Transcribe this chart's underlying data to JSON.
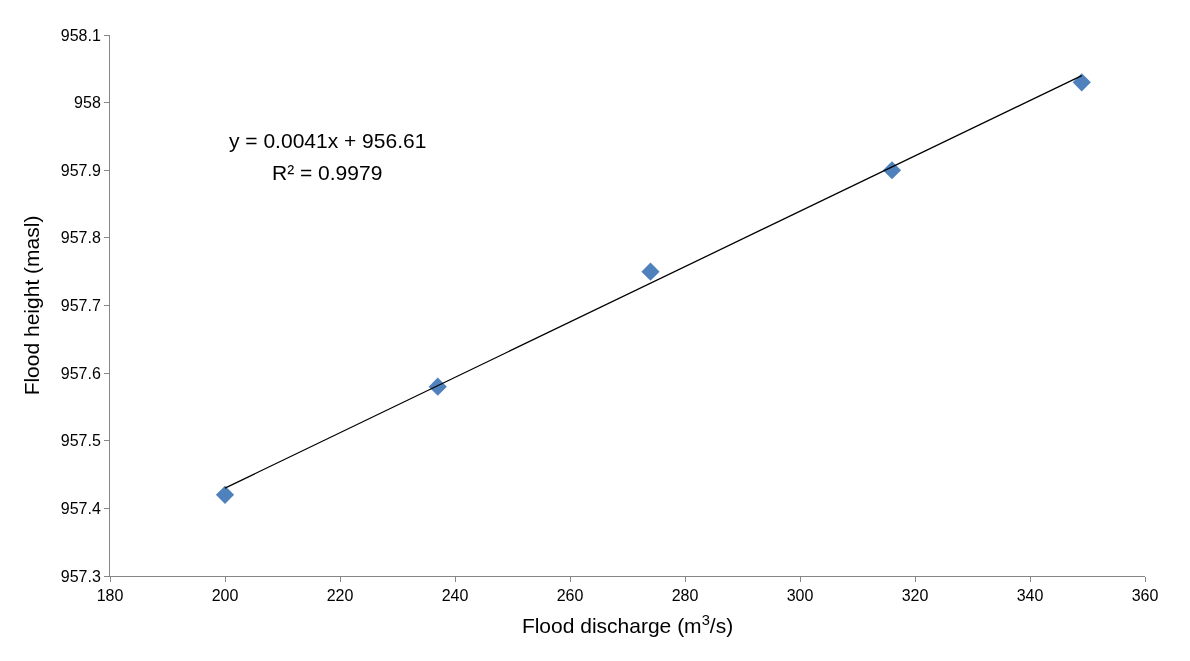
{
  "chart_data": {
    "type": "scatter",
    "xlabel": "Flood discharge (m$^{3}$/s)",
    "ylabel": "Flood height (masl)",
    "annotations": [
      "y = 0.0041x + 956.61",
      "R² = 0.9979"
    ],
    "series": [
      {
        "color": "#4f81bd",
        "marker": "diamond",
        "x": [
          200,
          237,
          274,
          316,
          349
        ],
        "values": [
          957.42,
          957.58,
          957.75,
          957.9,
          958.03
        ]
      },
      {
        "type": "line",
        "marker": "none",
        "color": "#000000",
        "x": [
          200,
          349
        ],
        "values": [
          957.43,
          958.04
        ]
      }
    ],
    "xlim": [
      180,
      360
    ],
    "xticks": [
      180,
      200,
      220,
      240,
      260,
      280,
      300,
      320,
      340,
      360
    ],
    "ylim": [
      957.3,
      958.1
    ],
    "yticks": [
      {
        "value": 957.3,
        "label": "957.3"
      },
      {
        "value": 957.4,
        "label": "957.4"
      },
      {
        "value": 957.5,
        "label": "957.5"
      },
      {
        "value": 957.6,
        "label": "957.6"
      },
      {
        "value": 957.7,
        "label": "957.7"
      },
      {
        "value": 957.8,
        "label": "957.8"
      },
      {
        "value": 957.9,
        "label": "957.9"
      },
      {
        "value": 958,
        "label": "958"
      },
      {
        "value": 958.1,
        "label": "958.1"
      }
    ],
    "grid": false
  }
}
